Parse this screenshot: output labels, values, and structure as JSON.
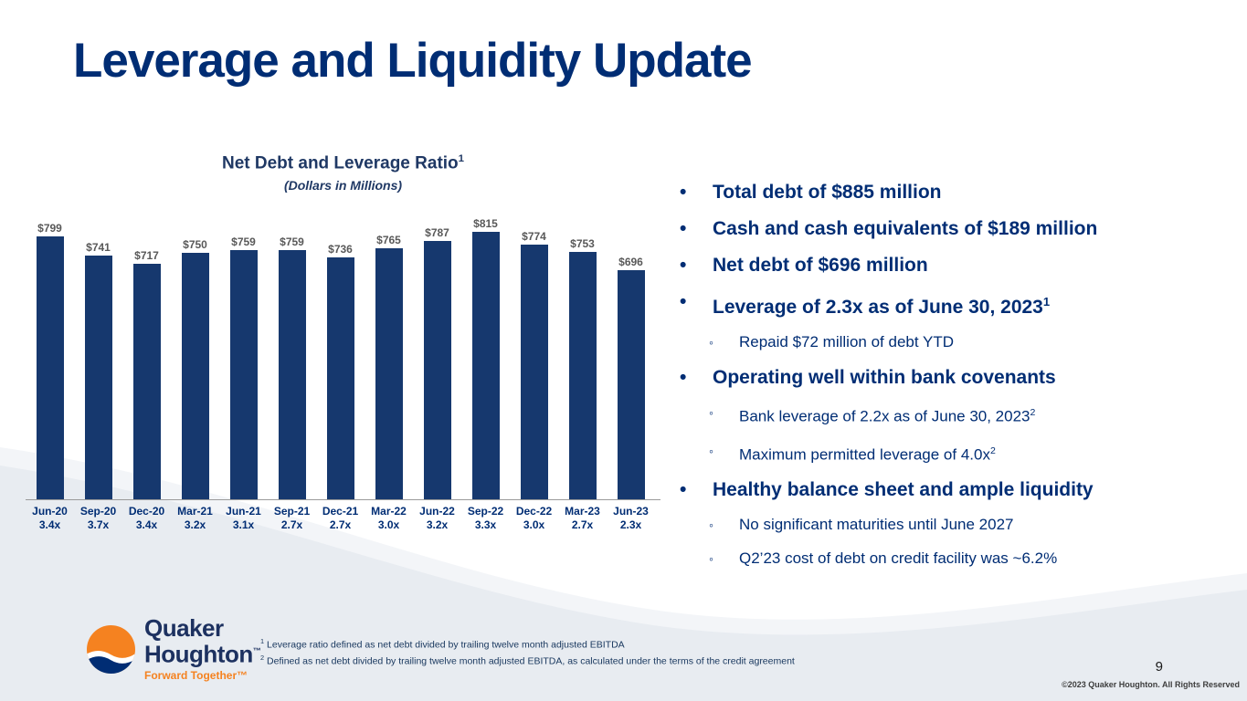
{
  "slide": {
    "title": "Leverage and Liquidity Update",
    "page_number": "9",
    "copyright": "©2023 Quaker Houghton. All Rights Reserved"
  },
  "chart_data": {
    "type": "bar",
    "title": "Net Debt and Leverage Ratio",
    "title_sup": "1",
    "subtitle": "(Dollars in Millions)",
    "categories": [
      "Jun-20",
      "Sep-20",
      "Dec-20",
      "Mar-21",
      "Jun-21",
      "Sep-21",
      "Dec-21",
      "Mar-22",
      "Jun-22",
      "Sep-22",
      "Dec-22",
      "Mar-23",
      "Jun-23"
    ],
    "values": [
      799,
      741,
      717,
      750,
      759,
      759,
      736,
      765,
      787,
      815,
      774,
      753,
      696
    ],
    "value_labels": [
      "$799",
      "$741",
      "$717",
      "$750",
      "$759",
      "$759",
      "$736",
      "$765",
      "$787",
      "$815",
      "$774",
      "$753",
      "$696"
    ],
    "leverage_ratios": [
      "3.4x",
      "3.7x",
      "3.4x",
      "3.2x",
      "3.1x",
      "2.7x",
      "2.7x",
      "3.0x",
      "3.2x",
      "3.3x",
      "3.0x",
      "2.7x",
      "2.3x"
    ],
    "xlabel": "",
    "ylabel": "",
    "ylim": [
      0,
      900
    ],
    "grid": false,
    "legend": false
  },
  "bullets": [
    {
      "level": 1,
      "text": "Total debt of $885 million"
    },
    {
      "level": 1,
      "text": "Cash and cash equivalents of $189 million"
    },
    {
      "level": 1,
      "text": "Net debt of $696 million"
    },
    {
      "level": 1,
      "text": "Leverage of 2.3x as of June 30, 2023",
      "sup": "1"
    },
    {
      "level": 2,
      "text": "Repaid $72 million of debt YTD"
    },
    {
      "level": 1,
      "text": "Operating well within bank covenants"
    },
    {
      "level": 2,
      "text": "Bank leverage of 2.2x as of June 30, 2023",
      "sup": "2"
    },
    {
      "level": 2,
      "text": "Maximum permitted leverage of 4.0x",
      "sup": "2"
    },
    {
      "level": 1,
      "text": "Healthy balance sheet and ample liquidity"
    },
    {
      "level": 2,
      "text": "No significant maturities until June 2027"
    },
    {
      "level": 2,
      "text": "Q2’23 cost of debt on credit facility was ~6.2%"
    }
  ],
  "footnotes": [
    {
      "sup": "1",
      "text": "Leverage ratio defined as net debt divided by trailing twelve month adjusted EBITDA"
    },
    {
      "sup": "2",
      "text": "Defined as net debt divided by trailing twelve month adjusted EBITDA, as calculated under the terms of the credit agreement"
    }
  ],
  "logo": {
    "line1": "Quaker",
    "line2": "Houghton",
    "tm": "™",
    "tagline": "Forward Together™"
  },
  "colors": {
    "navy_text": "#002d74",
    "bar_navy": "#16386e",
    "orange": "#f58220",
    "value_label_gray": "#595959",
    "swoosh_gray": "#e8ecf1"
  }
}
